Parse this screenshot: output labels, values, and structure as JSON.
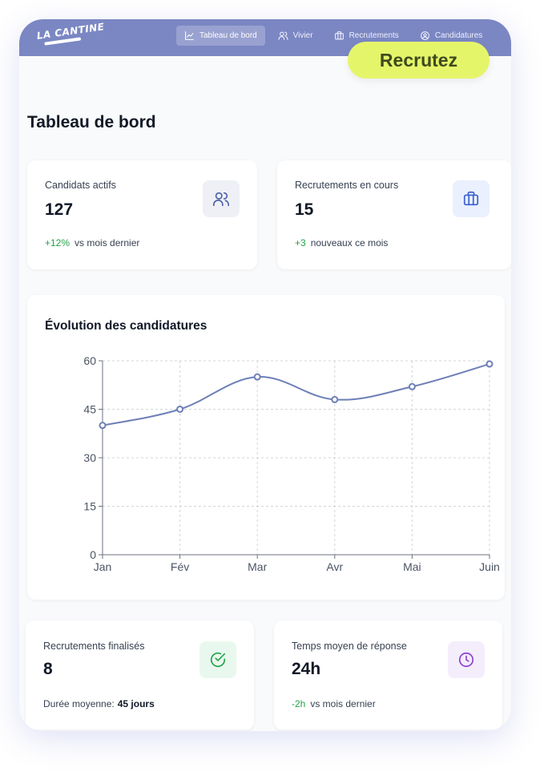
{
  "app": {
    "logo_text": "LA CANTINE"
  },
  "nav": [
    {
      "label": "Tableau de bord",
      "icon": "chart-line-icon",
      "active": true
    },
    {
      "label": "Vivier",
      "icon": "users-icon",
      "active": false
    },
    {
      "label": "Recrutements",
      "icon": "briefcase-icon",
      "active": false
    },
    {
      "label": "Candidatures",
      "icon": "user-circle-icon",
      "active": false
    }
  ],
  "cta": {
    "label": "Recrutez"
  },
  "page": {
    "title": "Tableau de bord"
  },
  "stats": {
    "active_candidates": {
      "label": "Candidats actifs",
      "value": "127",
      "delta": "+12%",
      "delta_text": "vs mois dernier",
      "icon": "users-icon"
    },
    "ongoing_recruitments": {
      "label": "Recrutements en cours",
      "value": "15",
      "delta": "+3",
      "delta_text": "nouveaux ce mois",
      "icon": "briefcase-icon"
    },
    "finalized_recruitments": {
      "label": "Recrutements finalisés",
      "value": "8",
      "sub_label": "Durée moyenne:",
      "sub_value": "45 jours",
      "icon": "check-circle-icon"
    },
    "avg_response_time": {
      "label": "Temps moyen de réponse",
      "value": "24h",
      "delta": "-2h",
      "delta_text": "vs mois dernier",
      "icon": "clock-icon"
    }
  },
  "colors": {
    "header": "#7b87c3",
    "cta": "#e5f56a",
    "line": "#6d7fb8",
    "positive": "#22a349"
  },
  "chart_data": {
    "type": "line",
    "title": "Évolution des candidatures",
    "categories": [
      "Jan",
      "Fév",
      "Mar",
      "Avr",
      "Mai",
      "Juin"
    ],
    "series": [
      {
        "values": [
          40,
          45,
          55,
          48,
          52,
          59
        ]
      }
    ],
    "ylim": [
      0,
      60
    ],
    "yticks": [
      0,
      15,
      30,
      45,
      60
    ],
    "grid": true,
    "smooth": true
  }
}
